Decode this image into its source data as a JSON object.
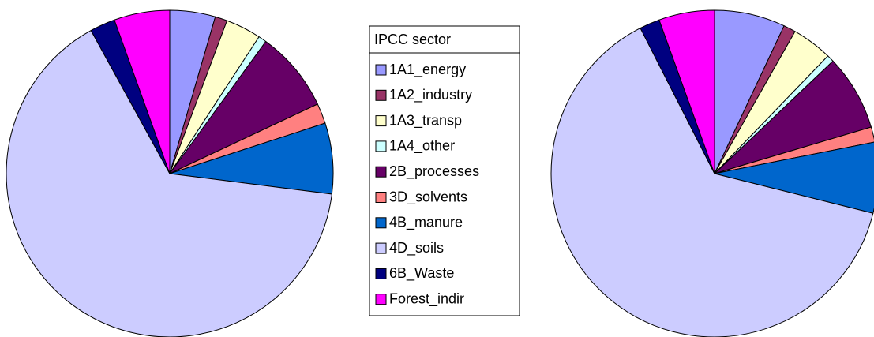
{
  "chart_data": {
    "type": "pie",
    "legend_title": "IPCC sector",
    "categories": [
      "1A1_energy",
      "1A2_industry",
      "1A3_transp",
      "1A4_other",
      "2B_processes",
      "3D_solvents",
      "4B_manure",
      "4D_soils",
      "6B_Waste",
      "Forest_indir"
    ],
    "colors": [
      "#9999ff",
      "#993366",
      "#ffffcc",
      "#ccffff",
      "#660066",
      "#ff8080",
      "#0066cc",
      "#ccccff",
      "#000080",
      "#ff00ff"
    ],
    "series": [
      {
        "values": [
          4.5,
          1.2,
          3.5,
          0.8,
          8,
          2,
          7,
          65,
          2.5,
          5.5
        ]
      },
      {
        "values": [
          7,
          1.2,
          4,
          0.7,
          7.5,
          1.5,
          7,
          63.6,
          2,
          5.5
        ]
      }
    ]
  }
}
